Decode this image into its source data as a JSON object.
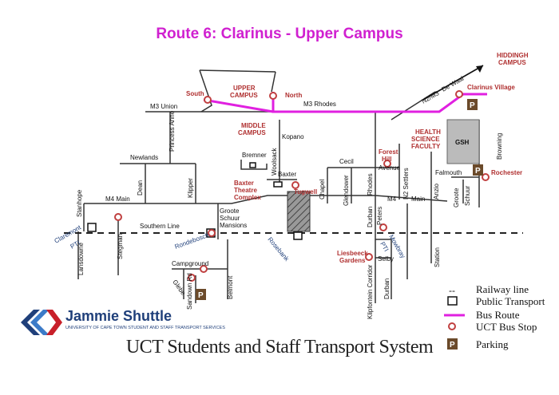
{
  "title": "Route 6: Clarinus - Upper Campus",
  "footer": "UCT Students and Staff Transport System",
  "brand": {
    "name": "Jammie Shuttle",
    "tagline": "UNIVERSITY OF CAPE TOWN STUDENT AND STAFF TRANSPORT SERVICES"
  },
  "colors": {
    "route": "#e020e0",
    "stop": "#c04040",
    "label_red": "#b03030",
    "title": "#d020d0",
    "parking": "#6b4a2a"
  },
  "legend": {
    "railway": "Railway line",
    "transport": "Public Transport",
    "route": "Bus Route",
    "stop": "UCT Bus Stop",
    "parking": "Parking",
    "railway_symbol": "--"
  },
  "roads": {
    "m3_union": "M3 Union",
    "m3_rhodes": "M3 Rhodes",
    "n2_m3": "N2/M3",
    "de_waal": "De Waal",
    "princess_anne": "Princess Anne",
    "newlands": "Newlands",
    "dean": "Dean",
    "klipper": "Klipper",
    "m4_main_left": "M4 Main",
    "stanhope": "Stanhope",
    "southern_line": "Southern Line",
    "groote_schuur_mansions": "Groote\nSchuur\nMansions",
    "kopano": "Kopano",
    "bremner": "Bremner",
    "woolsack": "Woolsack",
    "baxter": "Baxter",
    "chapel": "Chapel",
    "cecil": "Cecil",
    "glendower": "Glendower",
    "rhodes": "Rhodes",
    "avenue": "Avenue",
    "n2_settlers": "N2 Settlers",
    "m4_main_right": "M4",
    "main": "Main",
    "anzio": "Anzio",
    "falmouth": "Falmouth",
    "groote_schuur": "Groote\nSchuur",
    "browning": "Browning",
    "gsh": "GSH",
    "lansdowne": "Lansdowne",
    "stegman": "Stegman",
    "rondebosch": "Rondebosch",
    "rosebank": "Rosebank",
    "durban": "Durban",
    "peters": "Peters",
    "mowbray": "Mowbray",
    "selby": "Selby",
    "klipfontein_corridor": "Klipfontein Corridor",
    "durban_lower": "Durban",
    "station": "Station",
    "campground": "Campground",
    "glebe": "Glebe",
    "sandown_rd": "Sandown Rd",
    "belmont": "Belmont",
    "claremont_pti": "Claremont\nPTI",
    "pti": "PTI"
  },
  "places": {
    "south": "South",
    "upper_campus": "UPPER\nCAMPUS",
    "north": "North",
    "middle_campus": "MIDDLE\nCAMPUS",
    "hiddingh": "HIDDINGH\nCAMPUS",
    "clarinus": "Clarinus Village",
    "health_science": "HEALTH\nSCIENCE\nFACULTY",
    "forest_hill": "Forest\nHill",
    "baxter_theatre": "Baxter\nTheatre\nComplex",
    "tugwell": "Tugwell",
    "rochester": "Rochester",
    "liesbeeck": "Liesbeeck\nGardens"
  }
}
